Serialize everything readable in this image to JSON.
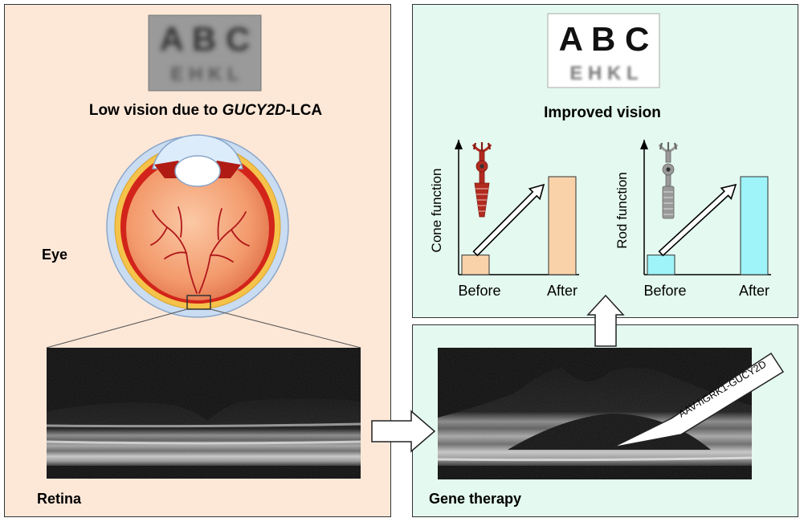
{
  "colors": {
    "left_panel_bg": "#fde8d8",
    "right_panel_bg": "#e4f9ef",
    "cone_bar": "#f9d2a9",
    "rod_bar": "#9ef4f8",
    "cone_icon": "#b32a1f",
    "rod_icon": "#999999"
  },
  "left_panel": {
    "title_prefix": "Low vision due to ",
    "title_gene": "GUCY2D",
    "title_suffix": "-LCA",
    "chart_line1": "A B C",
    "chart_line2": "E H K L",
    "eye_label": "Eye",
    "retina_label": "Retina"
  },
  "right_top_panel": {
    "title": "Improved vision",
    "chart_line1": "A B C",
    "chart_line2": "E H K L"
  },
  "right_bottom_panel": {
    "label": "Gene therapy",
    "vector_label": "AAV-hGRK1-GUCY2D"
  },
  "icons": [
    "cone-cell-icon",
    "rod-cell-icon",
    "right-arrow-icon",
    "up-arrow-icon",
    "needle-icon",
    "eye-icon"
  ],
  "chart_data": [
    {
      "type": "bar",
      "categories": [
        "Before",
        "After"
      ],
      "ylabel": "Cone function",
      "xlabel": "",
      "values": [
        0.2,
        1.0
      ],
      "series": [
        {
          "values": [
            0.2,
            1.0
          ]
        }
      ]
    },
    {
      "type": "bar",
      "categories": [
        "Before",
        "After"
      ],
      "ylabel": "Rod function",
      "xlabel": "",
      "values": [
        0.2,
        1.0
      ],
      "series": [
        {
          "values": [
            0.2,
            1.0
          ]
        }
      ]
    }
  ]
}
